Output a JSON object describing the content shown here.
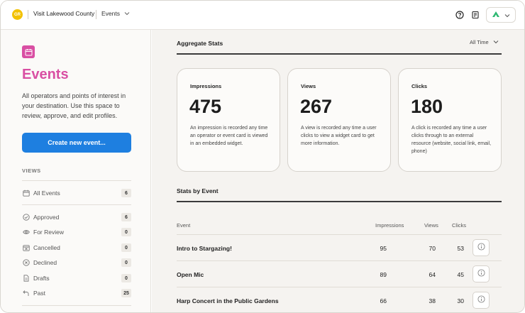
{
  "header": {
    "org_initials": "GR",
    "org_name": "Visit Lakewood County",
    "section": "Events",
    "brand_color": "#2eb872"
  },
  "sidebar": {
    "title": "Events",
    "description": "All operators and points of interest in your destination. Use this space to review, approve, and edit profiles.",
    "create_button": "Create new event...",
    "views_heading": "VIEWS",
    "items": [
      {
        "label": "All Events",
        "count": "6",
        "icon": "calendar-icon"
      },
      {
        "label": "Approved",
        "count": "6",
        "icon": "check-circle-icon"
      },
      {
        "label": "For Review",
        "count": "0",
        "icon": "eye-icon"
      },
      {
        "label": "Cancelled",
        "count": "0",
        "icon": "calendar-x-icon"
      },
      {
        "label": "Declined",
        "count": "0",
        "icon": "x-circle-icon"
      },
      {
        "label": "Drafts",
        "count": "0",
        "icon": "document-icon"
      },
      {
        "label": "Past",
        "count": "25",
        "icon": "return-arrow-icon"
      }
    ],
    "accent_color": "#d94fa3",
    "button_color": "#1e7fe0"
  },
  "aggregate": {
    "title": "Aggregate Stats",
    "range": "All Time",
    "cards": [
      {
        "title": "Impressions",
        "value": "475",
        "description": "An impression is recorded any time an operator or event card is viewed in an embedded widget."
      },
      {
        "title": "Views",
        "value": "267",
        "description": "A view is recorded any time a user clicks to view a widget card to get more information."
      },
      {
        "title": "Clicks",
        "value": "180",
        "description": "A click is recorded any time a user clicks through to an external resource (website, social link, email, phone)"
      }
    ]
  },
  "by_event": {
    "title": "Stats by Event",
    "columns": {
      "event": "Event",
      "impressions": "Impressions",
      "views": "Views",
      "clicks": "Clicks"
    },
    "rows": [
      {
        "event": "Intro to Stargazing!",
        "impressions": "95",
        "views": "70",
        "clicks": "53"
      },
      {
        "event": "Open Mic",
        "impressions": "89",
        "views": "64",
        "clicks": "45"
      },
      {
        "event": "Harp Concert in the Public Gardens",
        "impressions": "66",
        "views": "38",
        "clicks": "30"
      }
    ]
  }
}
